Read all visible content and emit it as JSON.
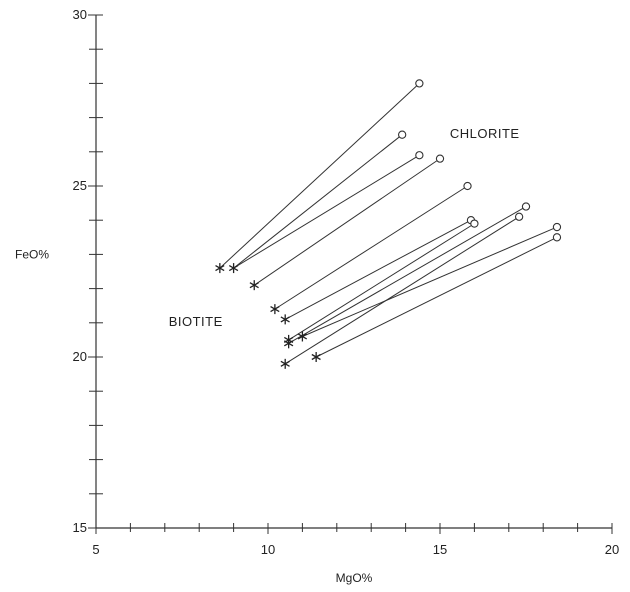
{
  "chart_data": {
    "type": "scatter",
    "title": "",
    "xlabel": "MgO%",
    "ylabel": "FeO%",
    "xlim": [
      5,
      20
    ],
    "ylim": [
      15,
      30
    ],
    "xticks": [
      5,
      10,
      15,
      20
    ],
    "yticks": [
      15,
      20,
      25,
      30
    ],
    "xtick_labels": [
      "5",
      "10",
      "15",
      "20"
    ],
    "ytick_labels": [
      "15",
      "20",
      "25",
      "30"
    ],
    "minor_tick_step": 1,
    "grid": false,
    "annotations": [
      {
        "text": "CHLORITE",
        "x": 16.3,
        "y": 26.4
      },
      {
        "text": "BIOTITE",
        "x": 7.9,
        "y": 20.9
      }
    ],
    "series": [
      {
        "marker": "asterisk",
        "x": [
          8.6,
          9.0,
          9.6,
          10.2,
          10.5,
          10.6,
          10.6,
          11.0,
          10.5,
          11.4
        ],
        "y": [
          22.6,
          22.6,
          22.1,
          21.4,
          21.1,
          20.5,
          20.4,
          20.6,
          19.8,
          20.0
        ]
      },
      {
        "marker": "circle",
        "x": [
          14.4,
          13.9,
          14.4,
          15.0,
          15.8,
          15.9,
          16.0,
          17.5,
          17.3,
          18.4,
          18.4
        ],
        "y": [
          28.0,
          26.5,
          25.9,
          25.8,
          25.0,
          24.0,
          23.9,
          24.4,
          24.1,
          23.8,
          23.5
        ]
      }
    ],
    "pairs": [
      [
        [
          8.6,
          22.6
        ],
        [
          14.4,
          28.0
        ]
      ],
      [
        [
          9.0,
          22.6
        ],
        [
          13.9,
          26.5
        ]
      ],
      [
        [
          9.0,
          22.6
        ],
        [
          14.4,
          25.9
        ]
      ],
      [
        [
          9.6,
          22.1
        ],
        [
          15.0,
          25.8
        ]
      ],
      [
        [
          10.2,
          21.4
        ],
        [
          15.8,
          25.0
        ]
      ],
      [
        [
          10.5,
          21.1
        ],
        [
          15.9,
          24.0
        ]
      ],
      [
        [
          10.6,
          20.5
        ],
        [
          16.0,
          23.9
        ]
      ],
      [
        [
          10.6,
          20.4
        ],
        [
          17.5,
          24.4
        ]
      ],
      [
        [
          11.0,
          20.6
        ],
        [
          18.4,
          23.8
        ]
      ],
      [
        [
          10.5,
          19.8
        ],
        [
          17.3,
          24.1
        ]
      ],
      [
        [
          11.4,
          20.0
        ],
        [
          18.4,
          23.5
        ]
      ]
    ]
  }
}
